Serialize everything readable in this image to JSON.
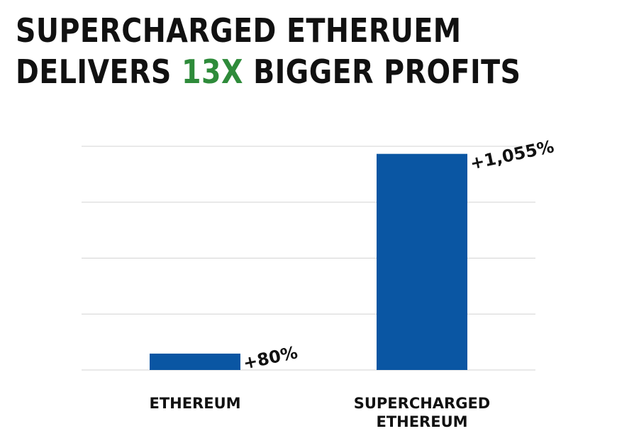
{
  "title_line1": "SUPERCHARGED ETHERUEM",
  "title_line2_pre": "DELIVERS ",
  "title_line2_highlight": "13X",
  "title_line2_post": " BIGGER PROFITS",
  "colors": {
    "bar": "#0a56a3",
    "highlight": "#2e8b3a",
    "grid": "#d3d3d3",
    "text": "#111111"
  },
  "chart_data": {
    "type": "bar",
    "title": "SUPERCHARGED ETHERUEM DELIVERS 13X BIGGER PROFITS",
    "categories": [
      "ETHEREUM",
      "SUPERCHARGED ETHEREUM"
    ],
    "category_label_lines": [
      [
        "ETHEREUM"
      ],
      [
        "SUPERCHARGED",
        "ETHEREUM"
      ]
    ],
    "values": [
      80,
      1055
    ],
    "data_labels": [
      "+80%",
      "+1,055%"
    ],
    "ylim": [
      0,
      1092
    ],
    "gridlines": 4,
    "grid": true,
    "axis_labels_shown": false
  }
}
